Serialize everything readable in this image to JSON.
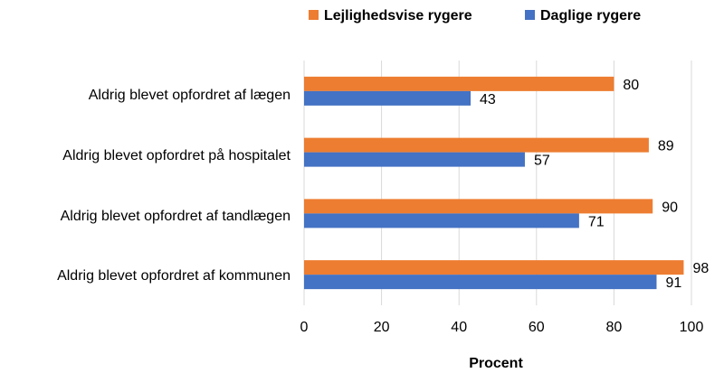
{
  "chart_data": {
    "type": "bar",
    "orientation": "horizontal",
    "categories": [
      "Aldrig blevet opfordret af lægen",
      "Aldrig blevet opfordret på hospitalet",
      "Aldrig blevet opfordret af tandlægen",
      "Aldrig blevet opfordret af kommunen"
    ],
    "series": [
      {
        "name": "Lejlighedsvise rygere",
        "color": "#ED7D31",
        "values": [
          80,
          89,
          90,
          98
        ]
      },
      {
        "name": "Daglige rygere",
        "color": "#4472C4",
        "values": [
          43,
          57,
          71,
          91
        ]
      }
    ],
    "xlabel": "Procent",
    "xlim": [
      0,
      100
    ],
    "xticks": [
      0,
      20,
      40,
      60,
      80,
      100
    ],
    "grid": "vertical",
    "legend_position": "top"
  }
}
